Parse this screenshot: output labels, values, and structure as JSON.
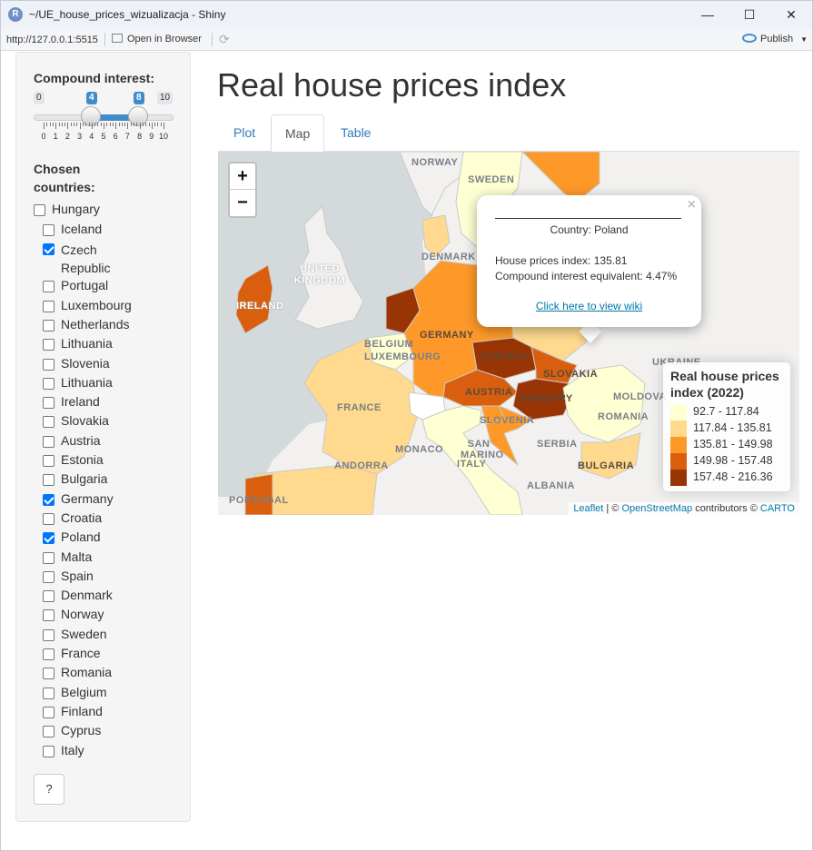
{
  "window": {
    "title": "~/UE_house_prices_wizualizacja - Shiny",
    "minimize": "—",
    "maximize": "☐",
    "close": "✕"
  },
  "addressbar": {
    "url": "http://127.0.0.1:5515",
    "open_in_browser": "Open in Browser",
    "publish": "Publish"
  },
  "sidebar": {
    "slider": {
      "label": "Compound interest:",
      "min": "0",
      "max": "10",
      "from": "4",
      "to": "8",
      "tick_labels": [
        "0",
        "1",
        "2",
        "3",
        "4",
        "5",
        "6",
        "7",
        "8",
        "9",
        "10"
      ]
    },
    "countries_label": "Chosen countries:",
    "hungary": {
      "label": "Hungary",
      "checked": false
    },
    "countries": [
      {
        "label": "Iceland",
        "checked": false
      },
      {
        "label": "Czech Republic",
        "checked": true
      },
      {
        "label": "Portugal",
        "checked": false
      },
      {
        "label": "Luxembourg",
        "checked": false
      },
      {
        "label": "Netherlands",
        "checked": false
      },
      {
        "label": "Lithuania",
        "checked": false
      },
      {
        "label": "Slovenia",
        "checked": false
      },
      {
        "label": "Lithuania",
        "checked": false
      },
      {
        "label": "Ireland",
        "checked": false
      },
      {
        "label": "Slovakia",
        "checked": false
      },
      {
        "label": "Austria",
        "checked": false
      },
      {
        "label": "Estonia",
        "checked": false
      },
      {
        "label": "Bulgaria",
        "checked": false
      },
      {
        "label": "Germany",
        "checked": true
      },
      {
        "label": "Croatia",
        "checked": false
      },
      {
        "label": "Poland",
        "checked": true
      },
      {
        "label": "Malta",
        "checked": false
      },
      {
        "label": "Spain",
        "checked": false
      },
      {
        "label": "Denmark",
        "checked": false
      },
      {
        "label": "Norway",
        "checked": false
      },
      {
        "label": "Sweden",
        "checked": false
      },
      {
        "label": "France",
        "checked": false
      },
      {
        "label": "Romania",
        "checked": false
      },
      {
        "label": "Belgium",
        "checked": false
      },
      {
        "label": "Finland",
        "checked": false
      },
      {
        "label": "Cyprus",
        "checked": false
      },
      {
        "label": "Italy",
        "checked": false
      }
    ],
    "help_button": "?"
  },
  "main": {
    "title": "Real house prices index",
    "tabs": [
      {
        "label": "Plot",
        "active": false
      },
      {
        "label": "Map",
        "active": true
      },
      {
        "label": "Table",
        "active": false
      }
    ]
  },
  "map": {
    "zoom_in": "+",
    "zoom_out": "−",
    "labels": {
      "norway": "NORWAY",
      "sweden": "SWEDEN",
      "uk": "UNITED KINGDOM",
      "ireland": "IRELAND",
      "denmark": "DENMARK",
      "germany": "GERMANY",
      "belgium": "BELGIUM",
      "luxembourg": "LUXEMBOURG",
      "czechia": "CZECHIA",
      "slovakia": "SLOVAKIA",
      "austria": "AUSTRIA",
      "hungary": "HUNGARY",
      "france": "FRANCE",
      "slovenia": "SLOVENIA",
      "romania": "ROMANIA",
      "moldova": "MOLDOVA",
      "ukraine": "UKRAINE",
      "serbia": "SERBIA",
      "monaco": "MONACO",
      "san_marino": "SAN MARINO",
      "italy": "ITALY",
      "andorra": "ANDORRA",
      "bulgaria": "BULGARIA",
      "portugal": "PORTUGAL",
      "albania": "ALBANIA"
    },
    "popup": {
      "close": "×",
      "country": "Country: Poland",
      "index_line": "House prices index: 135.81",
      "compound_line": "Compound interest equivalent: 4.47%",
      "wiki_link": "Click here to view wiki"
    },
    "legend": {
      "title": "Real house prices index (2022)",
      "items": [
        {
          "label": "92.7 - 117.84",
          "color": "#ffffd4"
        },
        {
          "label": "117.84 - 135.81",
          "color": "#fed98e"
        },
        {
          "label": "135.81 - 149.98",
          "color": "#fe9929"
        },
        {
          "label": "149.98 - 157.48",
          "color": "#d95f0e"
        },
        {
          "label": "157.48 - 216.36",
          "color": "#993404"
        }
      ]
    },
    "attribution": {
      "leaflet": "Leaflet",
      "sep1": " | © ",
      "osm": "OpenStreetMap",
      "mid": " contributors © ",
      "carto": "CARTO"
    }
  }
}
